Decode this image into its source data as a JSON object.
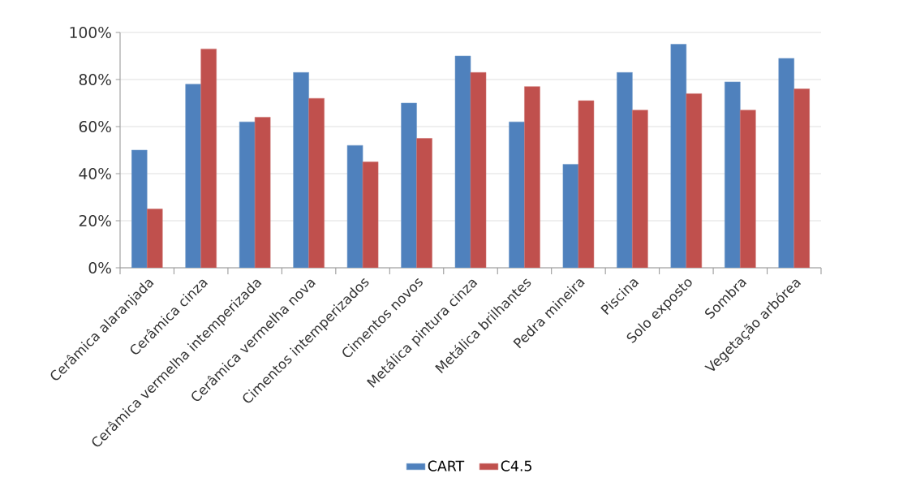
{
  "chart_data": {
    "type": "bar",
    "categories": [
      "Cerâmica alaranjada",
      "Cerâmica cinza",
      "Cerâmica vermelha intemperizada",
      "Cerâmica vermelha nova",
      "Cimentos intemperizados",
      "Cimentos novos",
      "Metálica pintura cinza",
      "Metálica brilhantes",
      "Pedra mineira",
      "Piscina",
      "Solo exposto",
      "Sombra",
      "Vegetação arbórea"
    ],
    "series": [
      {
        "name": "CART",
        "color": "#4f81bd",
        "values": [
          50,
          78,
          62,
          83,
          52,
          70,
          90,
          62,
          44,
          83,
          95,
          79,
          89
        ]
      },
      {
        "name": "C4.5",
        "color": "#c0504d",
        "values": [
          25,
          93,
          64,
          72,
          45,
          55,
          83,
          77,
          71,
          67,
          74,
          67,
          76
        ]
      }
    ],
    "ylim": [
      0,
      100
    ],
    "yticks": [
      {
        "value": 0,
        "label": "0%"
      },
      {
        "value": 20,
        "label": "20%"
      },
      {
        "value": 40,
        "label": "40%"
      },
      {
        "value": 60,
        "label": "60%"
      },
      {
        "value": 80,
        "label": "80%"
      },
      {
        "value": 100,
        "label": "100%"
      }
    ],
    "grid": "y",
    "legend": "bottom"
  }
}
